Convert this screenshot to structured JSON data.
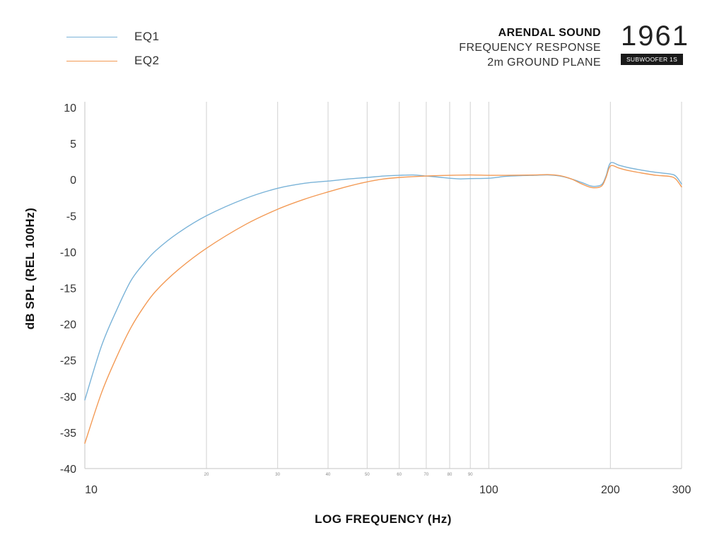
{
  "legend": [
    {
      "label": "EQ1",
      "color": "#7ab3d8"
    },
    {
      "label": "EQ2",
      "color": "#f39a55"
    }
  ],
  "brand": {
    "name": "ARENDAL SOUND",
    "line1": "FREQUENCY RESPONSE",
    "line2": "2m GROUND PLANE"
  },
  "logo": {
    "number": "1961",
    "badge": "SUBWOOFER 1S"
  },
  "chart_data": {
    "type": "line",
    "title": "",
    "xlabel": "LOG FREQUENCY (Hz)",
    "ylabel": "dB SPL (REL 100Hz)",
    "xscale": "log",
    "xlim": [
      10,
      300
    ],
    "ylim": [
      -40,
      10
    ],
    "yticks": [
      10,
      5,
      0,
      -5,
      -10,
      -15,
      -20,
      -25,
      -30,
      -35,
      -40
    ],
    "ytick_labels": [
      "10",
      "5",
      "0",
      "-5",
      "-10",
      "-15",
      "-20",
      "-25",
      "-30",
      "-35",
      "-40"
    ],
    "xticks_major": [
      10,
      100,
      200,
      300
    ],
    "xtick_major_labels": [
      "10",
      "100",
      "200",
      "300"
    ],
    "xticks_minor": [
      20,
      30,
      40,
      50,
      60,
      70,
      80,
      90
    ],
    "xtick_minor_labels": [
      "20",
      "30",
      "40",
      "50",
      "60",
      "70",
      "80",
      "90"
    ],
    "grid": "vertical",
    "legend_position": "top-left",
    "series": [
      {
        "name": "EQ1",
        "color": "#7ab3d8",
        "points": [
          [
            10,
            -30.5
          ],
          [
            11,
            -23
          ],
          [
            12,
            -18
          ],
          [
            13,
            -14
          ],
          [
            14,
            -11.6
          ],
          [
            15,
            -9.8
          ],
          [
            17,
            -7.4
          ],
          [
            20,
            -5
          ],
          [
            25,
            -2.6
          ],
          [
            30,
            -1.2
          ],
          [
            35,
            -0.5
          ],
          [
            40,
            -0.2
          ],
          [
            45,
            0.1
          ],
          [
            50,
            0.3
          ],
          [
            55,
            0.5
          ],
          [
            60,
            0.6
          ],
          [
            65,
            0.65
          ],
          [
            70,
            0.5
          ],
          [
            75,
            0.35
          ],
          [
            80,
            0.2
          ],
          [
            85,
            0.1
          ],
          [
            90,
            0.15
          ],
          [
            100,
            0.2
          ],
          [
            110,
            0.45
          ],
          [
            120,
            0.55
          ],
          [
            130,
            0.6
          ],
          [
            140,
            0.65
          ],
          [
            150,
            0.5
          ],
          [
            160,
            0.1
          ],
          [
            170,
            -0.4
          ],
          [
            180,
            -0.9
          ],
          [
            190,
            -0.7
          ],
          [
            195,
            0.5
          ],
          [
            200,
            2.3
          ],
          [
            210,
            2.0
          ],
          [
            220,
            1.7
          ],
          [
            240,
            1.3
          ],
          [
            260,
            1.0
          ],
          [
            280,
            0.8
          ],
          [
            290,
            0.5
          ],
          [
            300,
            -0.6
          ]
        ]
      },
      {
        "name": "EQ2",
        "color": "#f39a55",
        "points": [
          [
            10,
            -36.5
          ],
          [
            11,
            -29.5
          ],
          [
            12,
            -24.5
          ],
          [
            13,
            -20.5
          ],
          [
            14,
            -17.6
          ],
          [
            15,
            -15.4
          ],
          [
            17,
            -12.5
          ],
          [
            20,
            -9.5
          ],
          [
            25,
            -6.2
          ],
          [
            30,
            -4.1
          ],
          [
            35,
            -2.7
          ],
          [
            40,
            -1.7
          ],
          [
            45,
            -0.9
          ],
          [
            50,
            -0.3
          ],
          [
            55,
            0.1
          ],
          [
            60,
            0.3
          ],
          [
            70,
            0.5
          ],
          [
            80,
            0.6
          ],
          [
            90,
            0.65
          ],
          [
            100,
            0.6
          ],
          [
            110,
            0.6
          ],
          [
            120,
            0.62
          ],
          [
            130,
            0.65
          ],
          [
            140,
            0.7
          ],
          [
            150,
            0.55
          ],
          [
            160,
            0.1
          ],
          [
            170,
            -0.6
          ],
          [
            180,
            -1.1
          ],
          [
            190,
            -0.9
          ],
          [
            195,
            0.3
          ],
          [
            200,
            1.9
          ],
          [
            210,
            1.6
          ],
          [
            220,
            1.3
          ],
          [
            240,
            0.9
          ],
          [
            260,
            0.6
          ],
          [
            280,
            0.45
          ],
          [
            290,
            0.1
          ],
          [
            300,
            -1.0
          ]
        ]
      }
    ]
  }
}
